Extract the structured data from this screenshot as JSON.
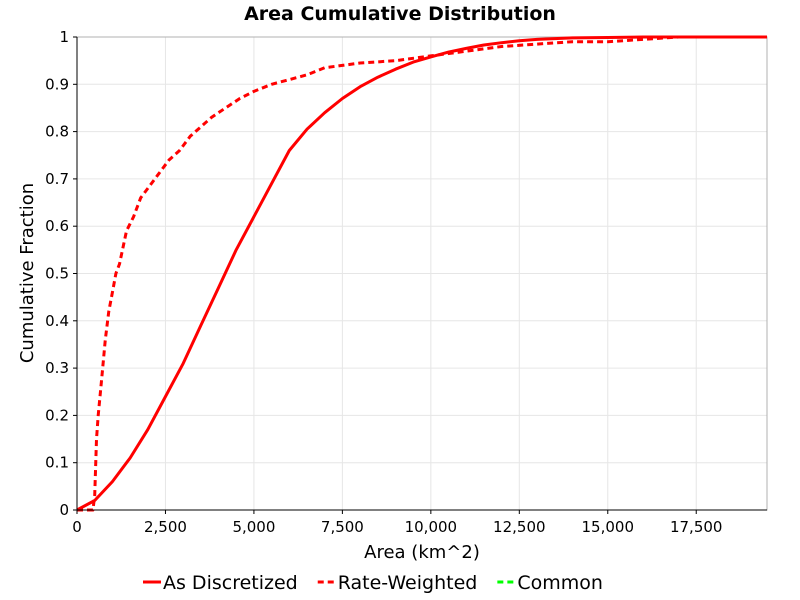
{
  "chart_data": {
    "type": "line",
    "title": "Area Cumulative Distribution",
    "xlabel": "Area (km^2)",
    "ylabel": "Cumulative Fraction",
    "xlim": [
      0,
      19500
    ],
    "ylim": [
      0,
      1
    ],
    "x_ticks": [
      0,
      2500,
      5000,
      7500,
      10000,
      12500,
      15000,
      17500
    ],
    "x_tick_labels": [
      "0",
      "2,500",
      "5,000",
      "7,500",
      "10,000",
      "12,500",
      "15,000",
      "17,500"
    ],
    "y_ticks": [
      0,
      0.1,
      0.2,
      0.3,
      0.4,
      0.5,
      0.6,
      0.7,
      0.8,
      0.9,
      1
    ],
    "y_tick_labels": [
      "0",
      "0.1",
      "0.2",
      "0.3",
      "0.4",
      "0.5",
      "0.6",
      "0.7",
      "0.8",
      "0.9",
      "1"
    ],
    "grid": true,
    "legend_position": "bottom",
    "series": [
      {
        "name": "As Discretized",
        "color": "#ff0000",
        "dash": "solid",
        "x": [
          0,
          500,
          1000,
          1500,
          2000,
          2500,
          3000,
          3500,
          4000,
          4500,
          5000,
          5500,
          6000,
          6500,
          7000,
          7500,
          8000,
          8500,
          9000,
          9500,
          10000,
          10500,
          11000,
          11500,
          12000,
          12500,
          13000,
          14000,
          15000,
          16000,
          17500,
          19500
        ],
        "y": [
          0,
          0.02,
          0.06,
          0.11,
          0.17,
          0.24,
          0.31,
          0.39,
          0.47,
          0.55,
          0.62,
          0.69,
          0.76,
          0.805,
          0.84,
          0.87,
          0.895,
          0.915,
          0.932,
          0.947,
          0.958,
          0.968,
          0.976,
          0.983,
          0.988,
          0.992,
          0.995,
          0.998,
          0.999,
          1,
          1,
          1
        ]
      },
      {
        "name": "Rate-Weighted",
        "color": "#ff0000",
        "dash": "dashed",
        "x": [
          0,
          450,
          500,
          550,
          600,
          700,
          800,
          900,
          1000,
          1100,
          1200,
          1400,
          1600,
          1800,
          2000,
          2300,
          2600,
          2900,
          3200,
          3500,
          3800,
          4200,
          4600,
          5000,
          5500,
          6000,
          6500,
          7000,
          7500,
          8000,
          9000,
          10000,
          11000,
          12000,
          13000,
          14000,
          15000,
          16000,
          17000,
          19500
        ],
        "y": [
          0,
          0,
          0.03,
          0.15,
          0.2,
          0.28,
          0.36,
          0.42,
          0.46,
          0.5,
          0.52,
          0.59,
          0.62,
          0.66,
          0.68,
          0.71,
          0.74,
          0.76,
          0.79,
          0.81,
          0.83,
          0.85,
          0.87,
          0.885,
          0.9,
          0.91,
          0.92,
          0.935,
          0.94,
          0.945,
          0.95,
          0.96,
          0.97,
          0.98,
          0.985,
          0.99,
          0.99,
          0.995,
          1,
          1
        ]
      },
      {
        "name": "Common",
        "color": "#00ff00",
        "dash": "dashed",
        "x": [],
        "y": []
      }
    ]
  }
}
